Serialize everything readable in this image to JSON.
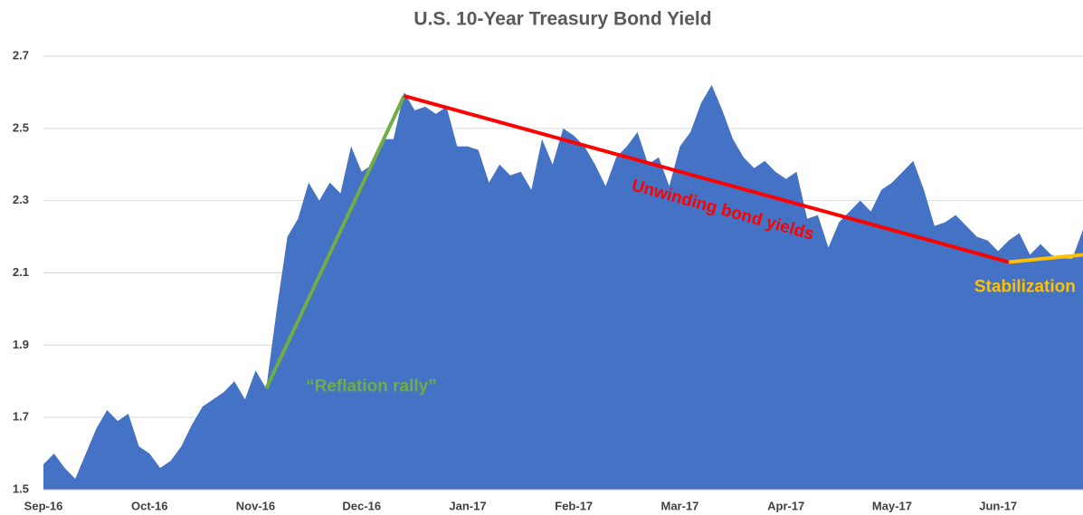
{
  "chart_data": {
    "type": "area",
    "title": "U.S. 10-Year Treasury Bond Yield",
    "color": "#4472c4",
    "grid": true,
    "categories": [
      "Sep-16",
      null,
      null,
      null,
      null,
      null,
      null,
      null,
      null,
      null,
      "Oct-16",
      null,
      null,
      null,
      null,
      null,
      null,
      null,
      null,
      null,
      "Nov-16",
      null,
      null,
      null,
      null,
      null,
      null,
      null,
      null,
      null,
      "Dec-16",
      null,
      null,
      null,
      null,
      null,
      null,
      null,
      null,
      null,
      "Jan-17",
      null,
      null,
      null,
      null,
      null,
      null,
      null,
      null,
      null,
      "Feb-17",
      null,
      null,
      null,
      null,
      null,
      null,
      null,
      null,
      null,
      "Mar-17",
      null,
      null,
      null,
      null,
      null,
      null,
      null,
      null,
      null,
      "Apr-17",
      null,
      null,
      null,
      null,
      null,
      null,
      null,
      null,
      null,
      "May-17",
      null,
      null,
      null,
      null,
      null,
      null,
      null,
      null,
      null,
      "Jun-17",
      null,
      null,
      null,
      null,
      null,
      null,
      null,
      null
    ],
    "values": [
      1.57,
      1.6,
      1.56,
      1.53,
      1.6,
      1.67,
      1.72,
      1.69,
      1.71,
      1.62,
      1.6,
      1.56,
      1.58,
      1.62,
      1.68,
      1.73,
      1.75,
      1.77,
      1.8,
      1.75,
      1.83,
      1.78,
      2.0,
      2.2,
      2.25,
      2.35,
      2.3,
      2.35,
      2.32,
      2.45,
      2.38,
      2.4,
      2.47,
      2.47,
      2.6,
      2.55,
      2.56,
      2.54,
      2.56,
      2.45,
      2.45,
      2.44,
      2.35,
      2.4,
      2.37,
      2.38,
      2.33,
      2.47,
      2.4,
      2.5,
      2.48,
      2.45,
      2.4,
      2.34,
      2.42,
      2.45,
      2.49,
      2.4,
      2.42,
      2.34,
      2.45,
      2.49,
      2.57,
      2.62,
      2.55,
      2.47,
      2.42,
      2.39,
      2.41,
      2.38,
      2.36,
      2.38,
      2.25,
      2.26,
      2.17,
      2.24,
      2.27,
      2.3,
      2.27,
      2.33,
      2.35,
      2.38,
      2.41,
      2.33,
      2.23,
      2.24,
      2.26,
      2.23,
      2.2,
      2.19,
      2.16,
      2.19,
      2.21,
      2.15,
      2.18,
      2.15,
      2.14,
      2.14,
      2.22
    ],
    "ylim": [
      1.5,
      2.7
    ],
    "yticks": [
      1.5,
      1.7,
      1.9,
      2.1,
      2.3,
      2.5,
      2.7
    ],
    "trend_lines": [
      {
        "label": "“Reflation rally”",
        "color": "#70ad47",
        "from": {
          "index": 21,
          "value": 1.78
        },
        "to": {
          "index": 34,
          "value": 2.59
        }
      },
      {
        "label": "Unwinding bond yields",
        "color": "#ff0000",
        "from": {
          "index": 34,
          "value": 2.59
        },
        "to": {
          "index": 91,
          "value": 2.13
        }
      },
      {
        "label": "Stabilization",
        "color": "#ffc000",
        "from": {
          "index": 91,
          "value": 2.13
        },
        "to": {
          "index": 98,
          "value": 2.15
        }
      }
    ]
  }
}
